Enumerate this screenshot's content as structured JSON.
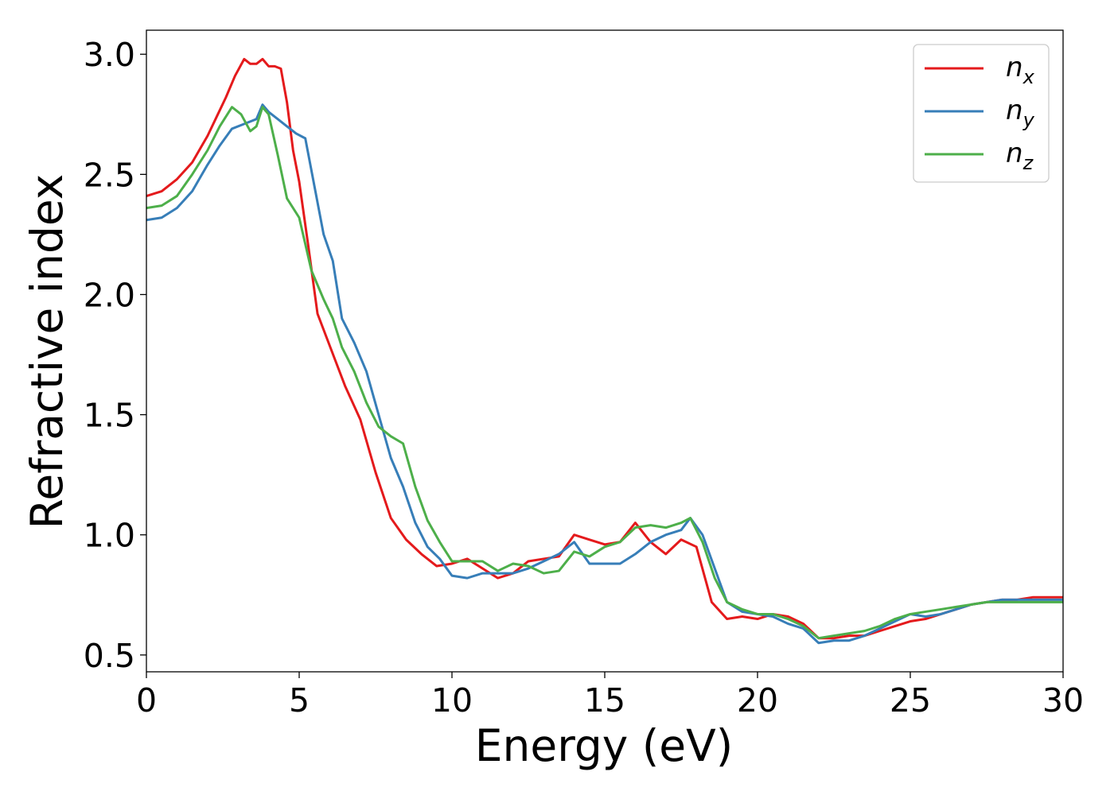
{
  "chart_data": {
    "type": "line",
    "title": "",
    "xlabel": "Energy (eV)",
    "ylabel": "Refractive index",
    "xlim": [
      0,
      30
    ],
    "ylim": [
      0.43,
      3.1
    ],
    "xticks": [
      "0",
      "5",
      "10",
      "15",
      "20",
      "25",
      "30"
    ],
    "yticks": [
      "0.5",
      "1.0",
      "1.5",
      "2.0",
      "2.5",
      "3.0"
    ],
    "grid": false,
    "legend_position": "top-right",
    "series": [
      {
        "name": "n",
        "subscript": "x",
        "color": "#e41a1c",
        "x": [
          0,
          0.5,
          1,
          1.5,
          2,
          2.3,
          2.6,
          2.9,
          3.2,
          3.4,
          3.6,
          3.8,
          4.0,
          4.2,
          4.4,
          4.6,
          4.8,
          5.0,
          5.3,
          5.6,
          5.9,
          6.2,
          6.5,
          7.0,
          7.5,
          8.0,
          8.5,
          9.0,
          9.5,
          10.0,
          10.5,
          11.0,
          11.5,
          12.0,
          12.5,
          13.0,
          13.5,
          14.0,
          14.5,
          15.0,
          15.5,
          16.0,
          16.5,
          17.0,
          17.5,
          18.0,
          18.5,
          19.0,
          19.5,
          20.0,
          20.5,
          21.0,
          21.5,
          22.0,
          22.5,
          23.0,
          23.5,
          24.0,
          24.5,
          25.0,
          25.5,
          26.0,
          26.5,
          27.0,
          27.5,
          28.0,
          28.5,
          29.0,
          29.5,
          30.0
        ],
        "y": [
          2.41,
          2.43,
          2.48,
          2.55,
          2.66,
          2.74,
          2.82,
          2.91,
          2.98,
          2.96,
          2.96,
          2.98,
          2.95,
          2.95,
          2.94,
          2.8,
          2.6,
          2.47,
          2.2,
          1.92,
          1.82,
          1.72,
          1.62,
          1.48,
          1.26,
          1.07,
          0.98,
          0.92,
          0.87,
          0.88,
          0.9,
          0.86,
          0.82,
          0.84,
          0.89,
          0.9,
          0.91,
          1.0,
          0.98,
          0.96,
          0.97,
          1.05,
          0.97,
          0.92,
          0.98,
          0.95,
          0.72,
          0.65,
          0.66,
          0.65,
          0.67,
          0.66,
          0.63,
          0.57,
          0.57,
          0.58,
          0.58,
          0.6,
          0.62,
          0.64,
          0.65,
          0.67,
          0.69,
          0.71,
          0.72,
          0.73,
          0.73,
          0.74,
          0.74,
          0.74
        ]
      },
      {
        "name": "n",
        "subscript": "y",
        "color": "#377eb8",
        "x": [
          0,
          0.5,
          1,
          1.5,
          2,
          2.4,
          2.8,
          3.2,
          3.6,
          3.8,
          4.0,
          4.3,
          4.6,
          4.9,
          5.2,
          5.5,
          5.8,
          6.1,
          6.4,
          6.8,
          7.2,
          7.6,
          8.0,
          8.4,
          8.8,
          9.2,
          9.6,
          10.0,
          10.5,
          11.0,
          11.5,
          12.0,
          12.5,
          13.0,
          13.5,
          14.0,
          14.5,
          15.0,
          15.5,
          16.0,
          16.5,
          17.0,
          17.5,
          17.8,
          18.2,
          18.6,
          19.0,
          19.5,
          20.0,
          20.5,
          21.0,
          21.5,
          22.0,
          22.5,
          23.0,
          23.5,
          24.0,
          24.5,
          25.0,
          25.5,
          26.0,
          26.5,
          27.0,
          27.5,
          28.0,
          28.5,
          29.0,
          29.5,
          30.0
        ],
        "y": [
          2.31,
          2.32,
          2.36,
          2.43,
          2.54,
          2.62,
          2.69,
          2.71,
          2.73,
          2.79,
          2.76,
          2.73,
          2.7,
          2.67,
          2.65,
          2.45,
          2.25,
          2.14,
          1.9,
          1.8,
          1.68,
          1.5,
          1.32,
          1.2,
          1.05,
          0.95,
          0.9,
          0.83,
          0.82,
          0.84,
          0.84,
          0.84,
          0.86,
          0.89,
          0.92,
          0.97,
          0.88,
          0.88,
          0.88,
          0.92,
          0.97,
          1.0,
          1.02,
          1.07,
          1.0,
          0.86,
          0.72,
          0.68,
          0.67,
          0.66,
          0.63,
          0.61,
          0.55,
          0.56,
          0.56,
          0.58,
          0.61,
          0.64,
          0.67,
          0.66,
          0.67,
          0.69,
          0.71,
          0.72,
          0.73,
          0.73,
          0.73,
          0.73,
          0.73
        ]
      },
      {
        "name": "n",
        "subscript": "z",
        "color": "#4daf4a",
        "x": [
          0,
          0.5,
          1,
          1.5,
          2,
          2.4,
          2.8,
          3.1,
          3.4,
          3.6,
          3.8,
          4.0,
          4.3,
          4.6,
          5.0,
          5.4,
          5.8,
          6.1,
          6.4,
          6.8,
          7.2,
          7.6,
          8.0,
          8.4,
          8.8,
          9.2,
          9.6,
          10.0,
          10.5,
          11.0,
          11.5,
          12.0,
          12.5,
          13.0,
          13.5,
          14.0,
          14.5,
          15.0,
          15.5,
          16.0,
          16.5,
          17.0,
          17.5,
          17.8,
          18.2,
          18.6,
          19.0,
          19.5,
          20.0,
          20.5,
          21.0,
          21.5,
          22.0,
          22.5,
          23.0,
          23.5,
          24.0,
          24.5,
          25.0,
          25.5,
          26.0,
          26.5,
          27.0,
          27.5,
          28.0,
          28.5,
          29.0,
          29.5,
          30.0
        ],
        "y": [
          2.36,
          2.37,
          2.41,
          2.5,
          2.6,
          2.7,
          2.78,
          2.75,
          2.68,
          2.7,
          2.78,
          2.75,
          2.58,
          2.4,
          2.32,
          2.1,
          1.98,
          1.9,
          1.78,
          1.68,
          1.55,
          1.45,
          1.41,
          1.38,
          1.2,
          1.06,
          0.97,
          0.89,
          0.89,
          0.89,
          0.85,
          0.88,
          0.87,
          0.84,
          0.85,
          0.93,
          0.91,
          0.95,
          0.97,
          1.03,
          1.04,
          1.03,
          1.05,
          1.07,
          0.97,
          0.82,
          0.72,
          0.69,
          0.67,
          0.67,
          0.65,
          0.62,
          0.57,
          0.58,
          0.59,
          0.6,
          0.62,
          0.65,
          0.67,
          0.68,
          0.69,
          0.7,
          0.71,
          0.72,
          0.72,
          0.72,
          0.72,
          0.72,
          0.72
        ]
      }
    ]
  }
}
